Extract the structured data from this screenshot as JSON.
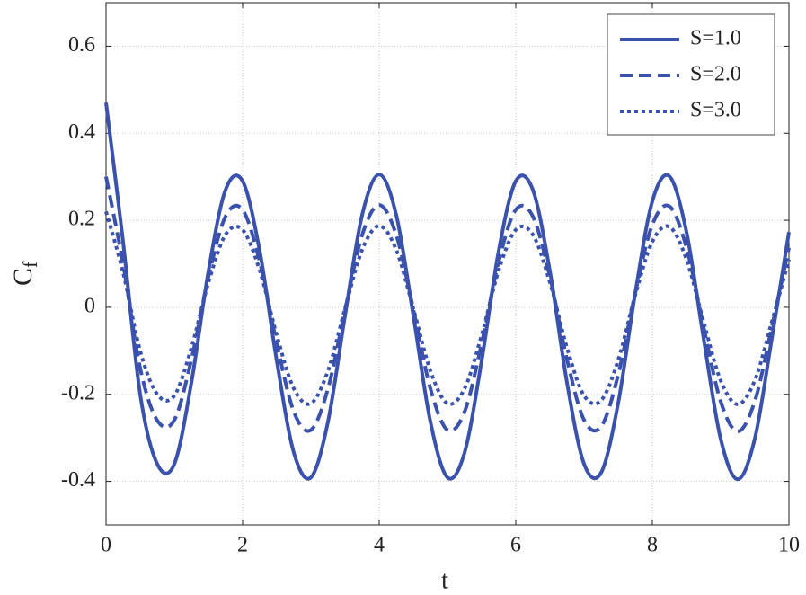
{
  "chart_data": {
    "type": "line",
    "x_label": "t",
    "y_label": "C",
    "y_label_subscript": "f",
    "x": [
      0,
      0.25,
      0.5,
      0.75,
      1,
      1.25,
      1.5,
      1.75,
      2,
      2.25,
      2.5,
      2.75,
      3,
      3.25,
      3.5,
      3.75,
      4,
      4.25,
      4.5,
      4.75,
      5,
      5.25,
      5.5,
      5.75,
      6,
      6.25,
      6.5,
      6.75,
      7,
      7.25,
      7.5,
      7.75,
      8,
      8.25,
      8.5,
      8.75,
      9,
      9.25,
      9.5,
      9.75,
      10
    ],
    "series": [
      {
        "name": "S=1.0",
        "color": "#3a52ad",
        "dash": "solid",
        "values": [
          0.47,
          0.15,
          -0.2,
          -0.36,
          -0.36,
          -0.173,
          0.083,
          0.27,
          0.29,
          0.13,
          -0.123,
          -0.334,
          -0.391,
          -0.263,
          -0.019,
          0.212,
          0.305,
          0.212,
          -0.019,
          -0.263,
          -0.391,
          -0.334,
          -0.123,
          0.13,
          0.29,
          0.27,
          0.083,
          -0.173,
          -0.36,
          -0.38,
          -0.22,
          0.033,
          0.244,
          0.301,
          0.173,
          -0.071,
          -0.302,
          -0.395,
          -0.302,
          -0.071,
          0.173
        ]
      },
      {
        "name": "S=2.0",
        "color": "#3a52ad",
        "dash": "dashed",
        "values": [
          0.3,
          0.1,
          -0.14,
          -0.26,
          -0.259,
          -0.12,
          0.07,
          0.209,
          0.224,
          0.105,
          -0.083,
          -0.24,
          -0.282,
          -0.187,
          -0.006,
          0.166,
          0.235,
          0.166,
          -0.005,
          -0.187,
          -0.282,
          -0.24,
          -0.083,
          0.105,
          0.224,
          0.209,
          0.07,
          -0.12,
          -0.259,
          -0.274,
          -0.155,
          0.033,
          0.19,
          0.232,
          0.137,
          -0.045,
          -0.216,
          -0.285,
          -0.216,
          -0.045,
          0.137
        ]
      },
      {
        "name": "S=3.0",
        "color": "#3a52ad",
        "dash": "dotted",
        "values": [
          0.22,
          0.08,
          -0.1,
          -0.2,
          -0.203,
          -0.093,
          0.057,
          0.167,
          0.178,
          0.085,
          -0.064,
          -0.187,
          -0.221,
          -0.146,
          -0.003,
          0.132,
          0.187,
          0.132,
          -0.003,
          -0.146,
          -0.221,
          -0.187,
          -0.064,
          0.085,
          0.178,
          0.167,
          0.057,
          -0.093,
          -0.203,
          -0.214,
          -0.121,
          0.028,
          0.151,
          0.185,
          0.11,
          -0.033,
          -0.168,
          -0.223,
          -0.168,
          -0.033,
          0.11
        ]
      }
    ],
    "xlim": [
      0,
      10
    ],
    "xticks": [
      0,
      2,
      4,
      6,
      8,
      10
    ],
    "ylim": [
      -0.5,
      0.7
    ],
    "yticks": [
      -0.4,
      -0.2,
      0,
      0.2,
      0.4,
      0.6
    ],
    "grid": true,
    "legend": "upper right"
  }
}
